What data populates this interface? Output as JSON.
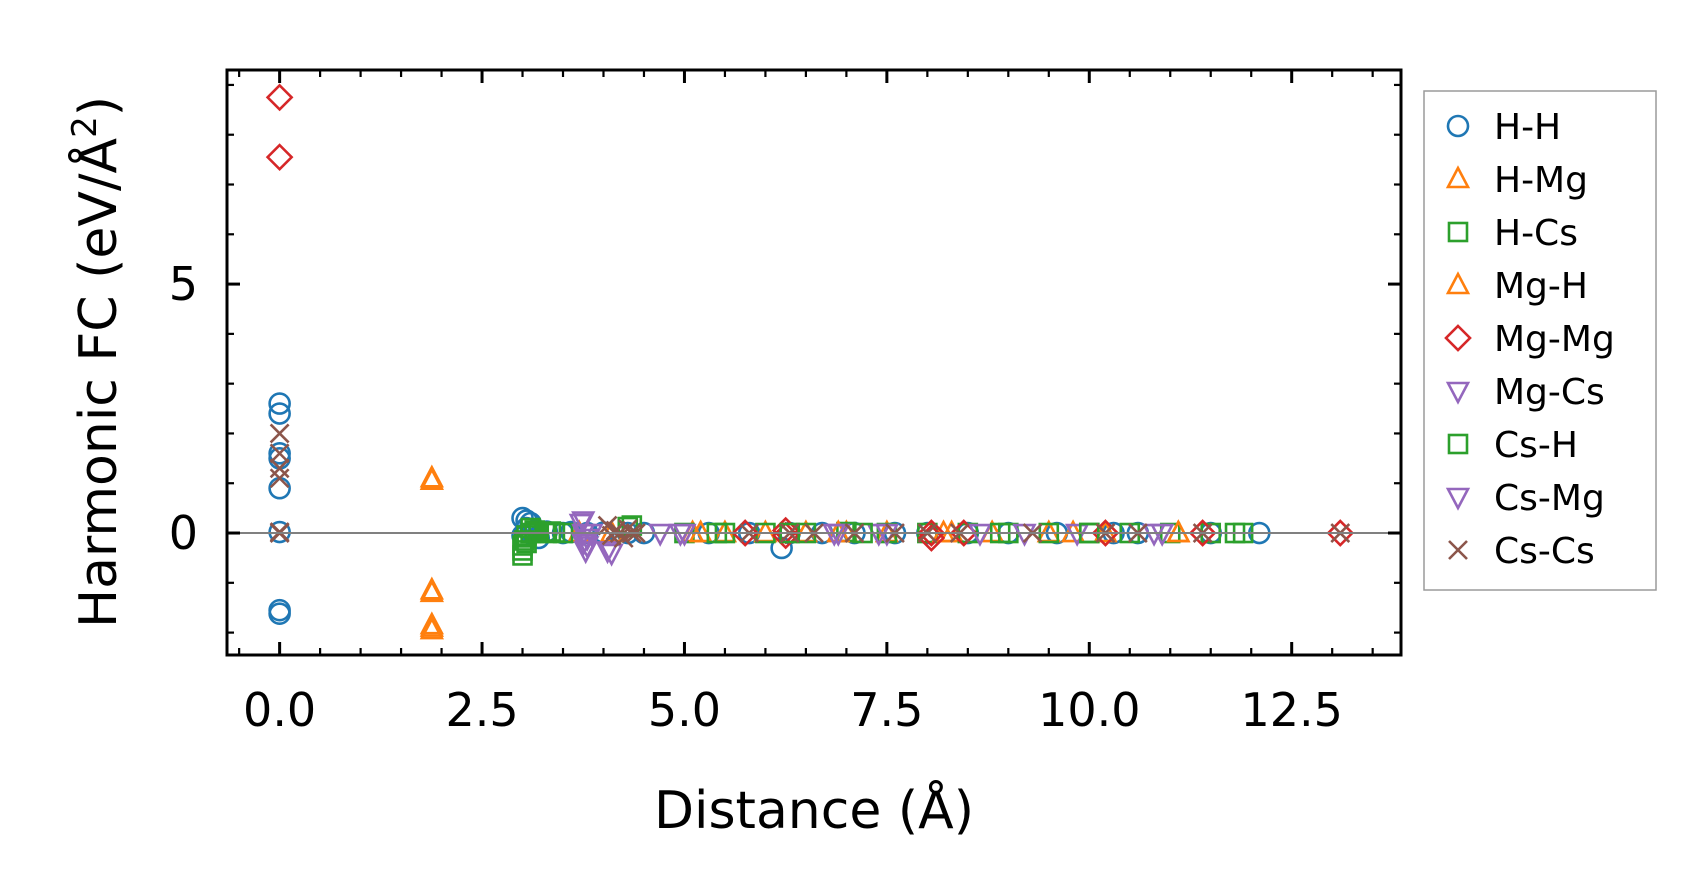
{
  "chart_data": {
    "type": "scatter",
    "title": "",
    "xlabel": "Distance (Å)",
    "ylabel": "Harmonic FC (eV/Å²)",
    "ylabel_main": "Harmonic FC (eV/Å",
    "ylabel_sup": "2",
    "ylabel_tail": ")",
    "xlim": [
      -0.65,
      13.85
    ],
    "ylim": [
      -2.45,
      9.3
    ],
    "xticks": [
      0.0,
      2.5,
      5.0,
      7.5,
      10.0,
      12.5
    ],
    "xtick_labels": [
      "0.0",
      "2.5",
      "5.0",
      "7.5",
      "10.0",
      "12.5"
    ],
    "yticks": [
      0,
      5
    ],
    "ytick_labels": [
      "0",
      "5"
    ],
    "zero_line": true,
    "grid": false,
    "legend_position": "outside-right",
    "series": [
      {
        "name": "H-H",
        "marker": "circle",
        "color": "#1f77b4",
        "x": [
          0,
          0,
          0,
          0,
          0,
          0,
          0,
          0,
          3.0,
          3.05,
          3.1,
          3.0,
          3.05,
          3.1,
          3.15,
          3.2,
          3.3,
          3.5,
          3.6,
          3.8,
          4.0,
          4.3,
          4.5,
          5.3,
          5.8,
          6.2,
          6.3,
          6.7,
          7.1,
          7.6,
          8.0,
          8.5,
          9.0,
          9.6,
          10.3,
          10.6,
          11.5,
          12.1
        ],
        "y": [
          2.6,
          2.4,
          1.6,
          1.5,
          0.9,
          -1.55,
          -1.62,
          0.02,
          0.3,
          0.25,
          0.2,
          -0.05,
          0.1,
          0.0,
          0.05,
          -0.1,
          0.03,
          0.0,
          0.02,
          0.0,
          0.01,
          0.0,
          0.0,
          0.0,
          0.0,
          -0.3,
          0.0,
          0.0,
          0.0,
          0.0,
          0.0,
          0.0,
          0.0,
          0.0,
          0.0,
          0.0,
          0.0,
          0.0
        ]
      },
      {
        "name": "H-Mg",
        "marker": "triangle-up",
        "color": "#ff7f0e",
        "x": [
          1.88,
          1.88,
          1.88,
          1.88,
          3.7,
          4.1,
          5.1,
          5.5,
          6.0,
          6.5,
          7.0,
          7.5,
          8.3,
          8.8,
          9.5,
          10.2,
          11.1
        ],
        "y": [
          1.1,
          -1.15,
          -1.85,
          -1.95,
          0.0,
          0.0,
          0.0,
          0.0,
          0.0,
          0.0,
          0.0,
          0.0,
          0.0,
          0.0,
          0.0,
          0.0,
          0.0
        ]
      },
      {
        "name": "H-Cs",
        "marker": "square",
        "color": "#2ca02c",
        "x": [
          3.0,
          3.0,
          3.02,
          3.05,
          3.1,
          3.15,
          3.2,
          3.3,
          3.4,
          3.5,
          4.3,
          5.0,
          5.5,
          6.0,
          6.5,
          7.0,
          7.5,
          8.0,
          8.5,
          9.0,
          9.5,
          10.0,
          10.5,
          11.0,
          11.5,
          11.9
        ],
        "y": [
          -0.45,
          -0.25,
          -0.15,
          -0.05,
          0.0,
          0.05,
          0.02,
          0.0,
          0.01,
          0.0,
          0.12,
          0.0,
          0.0,
          0.0,
          0.0,
          0.02,
          0.0,
          0.0,
          0.0,
          0.0,
          0.0,
          0.0,
          0.0,
          0.0,
          0.0,
          0.0
        ]
      },
      {
        "name": "Mg-H",
        "marker": "triangle-up",
        "color": "#ff7f0e",
        "x": [
          1.88,
          1.88,
          1.88,
          5.2,
          6.9,
          8.2,
          9.8,
          11.1
        ],
        "y": [
          1.05,
          -1.2,
          -1.9,
          0.0,
          0.0,
          0.0,
          0.0,
          0.0
        ]
      },
      {
        "name": "Mg-Mg",
        "marker": "diamond",
        "color": "#d62728",
        "x": [
          0,
          0,
          5.75,
          6.25,
          6.25,
          8.05,
          8.05,
          8.45,
          10.2,
          11.4,
          13.1
        ],
        "y": [
          8.75,
          7.55,
          0.0,
          0.05,
          -0.05,
          0.0,
          -0.1,
          0.0,
          0.0,
          0.0,
          0.0
        ]
      },
      {
        "name": "Mg-Cs",
        "marker": "triangle-down",
        "color": "#9467bd",
        "x": [
          3.75,
          3.75,
          3.75,
          3.78,
          3.8,
          4.05,
          4.7,
          4.95,
          6.85,
          7.4,
          8.65,
          9.85,
          10.8
        ],
        "y": [
          0.25,
          0.0,
          -0.2,
          -0.35,
          -0.1,
          -0.35,
          0.0,
          0.0,
          0.0,
          0.0,
          0.0,
          0.0,
          0.0
        ]
      },
      {
        "name": "Cs-H",
        "marker": "square",
        "color": "#2ca02c",
        "x": [
          3.0,
          3.05,
          3.1,
          3.2,
          3.35,
          4.35,
          5.4,
          6.3,
          7.2,
          8.9,
          10.0,
          11.8
        ],
        "y": [
          -0.35,
          -0.2,
          0.1,
          0.0,
          0.03,
          0.15,
          0.0,
          0.0,
          0.0,
          0.0,
          0.0,
          0.0
        ]
      },
      {
        "name": "Cs-Mg",
        "marker": "triangle-down",
        "color": "#9467bd",
        "x": [
          3.72,
          3.8,
          3.85,
          4.1,
          5.0,
          6.9,
          7.5,
          9.2,
          10.9
        ],
        "y": [
          0.2,
          -0.25,
          0.0,
          -0.4,
          0.0,
          0.0,
          0.0,
          0.0,
          0.0
        ]
      },
      {
        "name": "Cs-Cs",
        "marker": "x",
        "color": "#8c564b",
        "x": [
          0,
          0,
          0,
          0,
          0,
          0,
          4.05,
          4.1,
          4.15,
          4.2,
          4.25,
          4.3,
          4.35,
          4.4,
          5.8,
          6.3,
          6.6,
          7.1,
          7.6,
          8.0,
          8.4,
          9.3,
          10.2,
          10.6,
          11.4,
          13.1
        ],
        "y": [
          2.0,
          1.6,
          1.3,
          1.1,
          0.0,
          0.02,
          0.15,
          -0.05,
          0.05,
          0.0,
          -0.1,
          0.08,
          0.0,
          0.0,
          0.0,
          0.0,
          0.0,
          0.0,
          0.0,
          0.0,
          0.0,
          0.0,
          0.0,
          0.0,
          0.0,
          0.0
        ]
      }
    ]
  }
}
